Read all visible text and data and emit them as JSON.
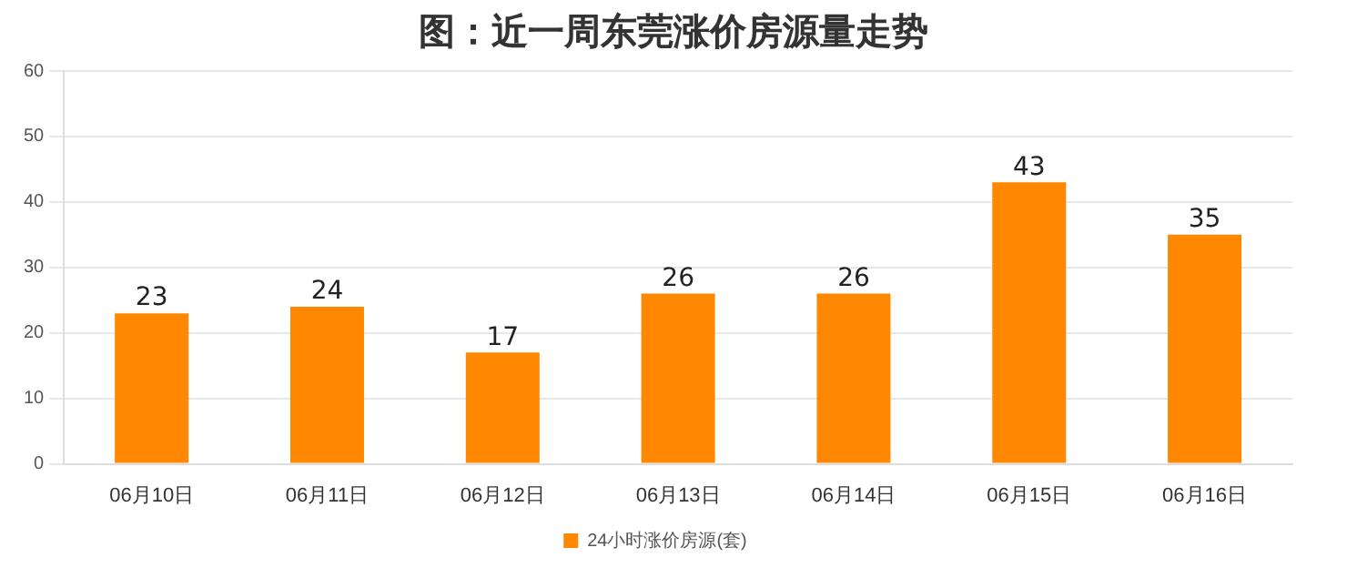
{
  "chart_data": {
    "type": "bar",
    "title": "图：近一周东莞涨价房源量走势",
    "categories": [
      "06月10日",
      "06月11日",
      "06月12日",
      "06月13日",
      "06月14日",
      "06月15日",
      "06月16日"
    ],
    "series": [
      {
        "name": "24小时涨价房源(套)",
        "color": "#ff8800",
        "values": [
          23,
          24,
          17,
          26,
          26,
          43,
          35
        ]
      }
    ],
    "ylim": [
      0,
      60
    ],
    "yticks": [
      0,
      10,
      20,
      30,
      40,
      50,
      60
    ],
    "grid": "y",
    "legend": "bottom",
    "data_labels": true
  }
}
